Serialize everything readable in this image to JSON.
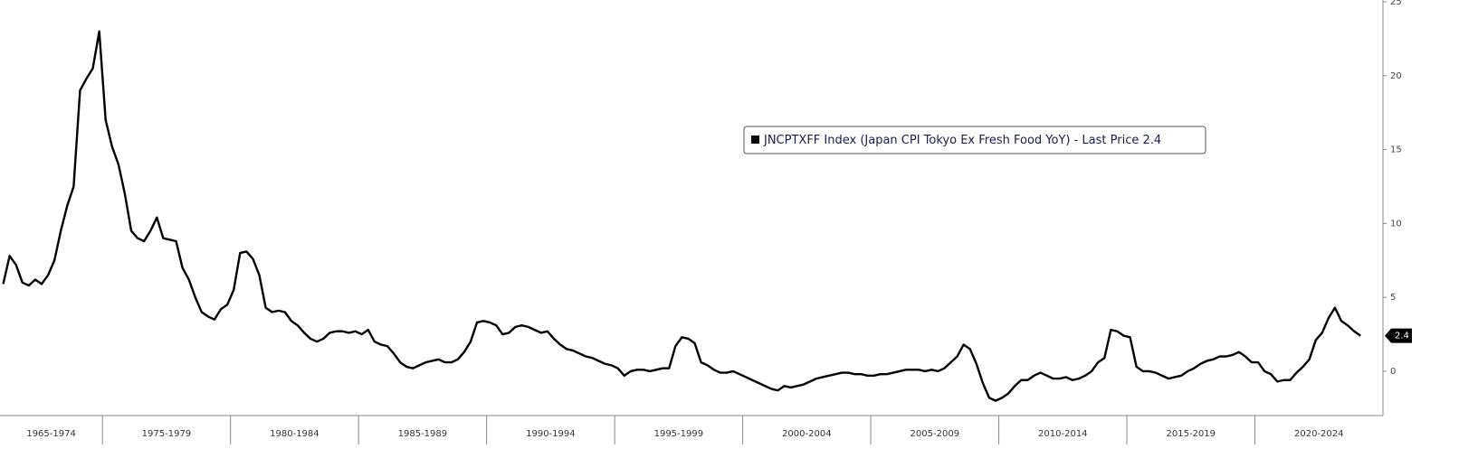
{
  "chart_data": {
    "type": "line",
    "categories": [
      "1965-1974",
      "1975-1979",
      "1980-1984",
      "1985-1989",
      "1990-1994",
      "1995-1999",
      "2000-2004",
      "2005-2009",
      "2010-2014",
      "2015-2019",
      "2020-2024"
    ],
    "series": [
      {
        "name": "JNCPTXFF Index (Japan CPI Tokyo Ex Fresh Food YoY) - Last Price 2.4",
        "color": "#000000",
        "values": [
          [
            5.9,
            7.8,
            7.2,
            6.0,
            5.8,
            6.2,
            5.9,
            6.5,
            7.5,
            9.5,
            11.2,
            12.5,
            19.0,
            19.8,
            20.5,
            23.0
          ],
          [
            17.0,
            15.2,
            14.0,
            12.0,
            9.5,
            9.0,
            8.8,
            9.5,
            10.4,
            9.0,
            8.9,
            8.8,
            7.0,
            6.2,
            5.0,
            4.0,
            3.7,
            3.5,
            4.2,
            4.5
          ],
          [
            5.5,
            8.0,
            8.1,
            7.6,
            6.5,
            4.3,
            4.0,
            4.1,
            4.0,
            3.4,
            3.1,
            2.6,
            2.2,
            2.0,
            2.2,
            2.6,
            2.7,
            2.7,
            2.6,
            2.7
          ],
          [
            2.5,
            2.8,
            2.0,
            1.8,
            1.7,
            1.2,
            0.6,
            0.3,
            0.2,
            0.4,
            0.6,
            0.7,
            0.8,
            0.6,
            0.6,
            0.8,
            1.3,
            2.0,
            3.3,
            3.4
          ],
          [
            3.3,
            3.1,
            2.5,
            2.6,
            3.0,
            3.1,
            3.0,
            2.8,
            2.6,
            2.7,
            2.2,
            1.8,
            1.5,
            1.4,
            1.2,
            1.0,
            0.9,
            0.7,
            0.5,
            0.4
          ],
          [
            0.2,
            -0.3,
            0.0,
            0.1,
            0.1,
            0.0,
            0.1,
            0.2,
            0.2,
            1.7,
            2.3,
            2.2,
            1.9,
            0.6,
            0.4,
            0.1,
            -0.1,
            -0.1,
            0.0,
            -0.2
          ],
          [
            -0.4,
            -0.6,
            -0.8,
            -1.0,
            -1.2,
            -1.3,
            -1.0,
            -1.1,
            -1.0,
            -0.9,
            -0.7,
            -0.5,
            -0.4,
            -0.3,
            -0.2,
            -0.1,
            -0.1,
            -0.2,
            -0.2,
            -0.3
          ],
          [
            -0.3,
            -0.2,
            -0.2,
            -0.1,
            0.0,
            0.1,
            0.1,
            0.1,
            0.0,
            0.1,
            0.0,
            0.2,
            0.6,
            1.0,
            1.8,
            1.5,
            0.5,
            -0.8,
            -1.8,
            -2.0
          ],
          [
            -1.8,
            -1.5,
            -1.0,
            -0.6,
            -0.6,
            -0.3,
            -0.1,
            -0.3,
            -0.5,
            -0.5,
            -0.4,
            -0.6,
            -0.5,
            -0.3,
            0.0,
            0.6,
            0.9,
            2.8,
            2.7,
            2.4
          ],
          [
            2.3,
            0.3,
            0.0,
            0.0,
            -0.1,
            -0.3,
            -0.5,
            -0.4,
            -0.3,
            0.0,
            0.2,
            0.5,
            0.7,
            0.8,
            1.0,
            1.0,
            1.1,
            1.3,
            1.0,
            0.6
          ],
          [
            0.6,
            0.0,
            -0.2,
            -0.7,
            -0.6,
            -0.6,
            -0.1,
            0.3,
            0.8,
            2.1,
            2.6,
            3.6,
            4.3,
            3.4,
            3.1,
            2.7,
            2.4
          ]
        ]
      }
    ],
    "ylim": [
      -3,
      25
    ],
    "yticks": [
      0,
      5,
      10,
      15,
      20,
      25
    ],
    "y_axis_side": "right",
    "legend": "top-center"
  }
}
